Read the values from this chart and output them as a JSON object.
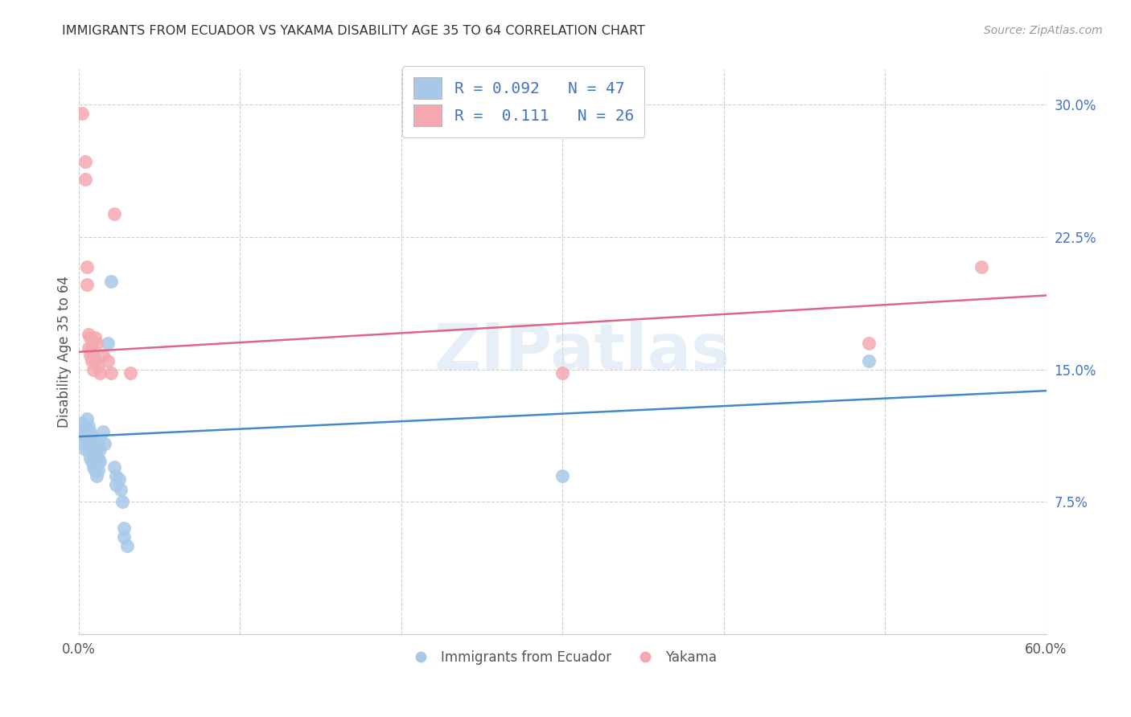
{
  "title": "IMMIGRANTS FROM ECUADOR VS YAKAMA DISABILITY AGE 35 TO 64 CORRELATION CHART",
  "source": "Source: ZipAtlas.com",
  "ylabel": "Disability Age 35 to 64",
  "xlim": [
    0.0,
    0.6
  ],
  "ylim": [
    0.0,
    0.32
  ],
  "xticks": [
    0.0,
    0.1,
    0.2,
    0.3,
    0.4,
    0.5,
    0.6
  ],
  "yticks": [
    0.0,
    0.075,
    0.15,
    0.225,
    0.3
  ],
  "ytick_labels": [
    "",
    "7.5%",
    "15.0%",
    "22.5%",
    "30.0%"
  ],
  "xtick_labels": [
    "0.0%",
    "",
    "",
    "",
    "",
    "",
    "60.0%"
  ],
  "watermark": "ZIPatlas",
  "legend_blue_label": "R = 0.092   N = 47",
  "legend_pink_label": "R =  0.111   N = 26",
  "blue_color": "#a8c8e8",
  "pink_color": "#f4a8b0",
  "blue_line_color": "#4488cc",
  "pink_line_color": "#dd6688",
  "legend_text_color": "#4472c4",
  "blue_scatter": [
    [
      0.002,
      0.12
    ],
    [
      0.003,
      0.115
    ],
    [
      0.003,
      0.108
    ],
    [
      0.004,
      0.118
    ],
    [
      0.004,
      0.112
    ],
    [
      0.004,
      0.105
    ],
    [
      0.005,
      0.122
    ],
    [
      0.005,
      0.115
    ],
    [
      0.005,
      0.11
    ],
    [
      0.006,
      0.118
    ],
    [
      0.006,
      0.112
    ],
    [
      0.006,
      0.105
    ],
    [
      0.007,
      0.115
    ],
    [
      0.007,
      0.108
    ],
    [
      0.007,
      0.1
    ],
    [
      0.008,
      0.112
    ],
    [
      0.008,
      0.105
    ],
    [
      0.008,
      0.098
    ],
    [
      0.009,
      0.11
    ],
    [
      0.009,
      0.103
    ],
    [
      0.009,
      0.095
    ],
    [
      0.01,
      0.108
    ],
    [
      0.01,
      0.1
    ],
    [
      0.01,
      0.093
    ],
    [
      0.011,
      0.105
    ],
    [
      0.011,
      0.098
    ],
    [
      0.011,
      0.09
    ],
    [
      0.012,
      0.108
    ],
    [
      0.012,
      0.1
    ],
    [
      0.012,
      0.093
    ],
    [
      0.013,
      0.105
    ],
    [
      0.013,
      0.098
    ],
    [
      0.015,
      0.115
    ],
    [
      0.016,
      0.108
    ],
    [
      0.018,
      0.165
    ],
    [
      0.02,
      0.2
    ],
    [
      0.022,
      0.095
    ],
    [
      0.023,
      0.09
    ],
    [
      0.023,
      0.085
    ],
    [
      0.025,
      0.088
    ],
    [
      0.026,
      0.082
    ],
    [
      0.027,
      0.075
    ],
    [
      0.028,
      0.06
    ],
    [
      0.028,
      0.055
    ],
    [
      0.03,
      0.05
    ],
    [
      0.3,
      0.09
    ],
    [
      0.49,
      0.155
    ]
  ],
  "pink_scatter": [
    [
      0.002,
      0.295
    ],
    [
      0.004,
      0.268
    ],
    [
      0.004,
      0.258
    ],
    [
      0.005,
      0.208
    ],
    [
      0.005,
      0.198
    ],
    [
      0.006,
      0.17
    ],
    [
      0.006,
      0.162
    ],
    [
      0.007,
      0.168
    ],
    [
      0.007,
      0.158
    ],
    [
      0.008,
      0.162
    ],
    [
      0.008,
      0.155
    ],
    [
      0.009,
      0.158
    ],
    [
      0.009,
      0.15
    ],
    [
      0.01,
      0.168
    ],
    [
      0.01,
      0.155
    ],
    [
      0.011,
      0.165
    ],
    [
      0.012,
      0.152
    ],
    [
      0.013,
      0.148
    ],
    [
      0.015,
      0.158
    ],
    [
      0.018,
      0.155
    ],
    [
      0.02,
      0.148
    ],
    [
      0.022,
      0.238
    ],
    [
      0.032,
      0.148
    ],
    [
      0.3,
      0.148
    ],
    [
      0.49,
      0.165
    ],
    [
      0.56,
      0.208
    ]
  ],
  "blue_trendline": [
    [
      0.0,
      0.112
    ],
    [
      0.6,
      0.138
    ]
  ],
  "pink_trendline": [
    [
      0.0,
      0.16
    ],
    [
      0.6,
      0.192
    ]
  ],
  "background_color": "#ffffff",
  "grid_color": "#d0d0d0"
}
